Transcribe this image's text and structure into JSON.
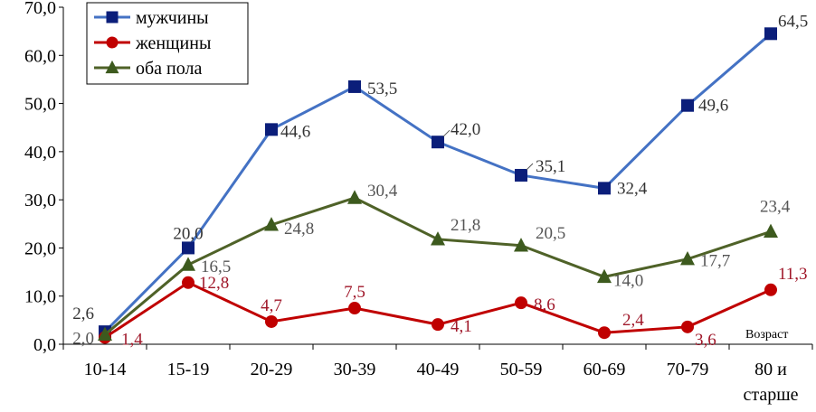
{
  "chart_data": {
    "type": "line",
    "categories": [
      "10-14",
      "15-19",
      "20-29",
      "30-39",
      "40-49",
      "50-59",
      "60-69",
      "70-79",
      "80 и старше"
    ],
    "category_lines": [
      [
        "10-14"
      ],
      [
        "15-19"
      ],
      [
        "20-29"
      ],
      [
        "30-39"
      ],
      [
        "40-49"
      ],
      [
        "50-59"
      ],
      [
        "60-69"
      ],
      [
        "70-79"
      ],
      [
        "80 и",
        "старше"
      ]
    ],
    "xlabel": "Возраст",
    "ylabel": "",
    "ylim": [
      0,
      70
    ],
    "y_ticks": [
      "0,0",
      "10,0",
      "20,0",
      "30,0",
      "40,0",
      "50,0",
      "60,0",
      "70,0"
    ],
    "legend_position": "top-left",
    "grid": false,
    "series": [
      {
        "name": "мужчины",
        "color": "#4472C4",
        "marker_color": "#0B1E7A",
        "marker": "square",
        "values": [
          2.6,
          20.0,
          44.6,
          53.5,
          42.0,
          35.1,
          32.4,
          49.6,
          64.5
        ],
        "labels": [
          "2,6",
          "20,0",
          "44,6",
          "53,5",
          "42,0",
          "35,1",
          "32,4",
          "49,6",
          "64,5"
        ],
        "label_color": "#333333"
      },
      {
        "name": "женщины",
        "color": "#C00000",
        "marker_color": "#C00000",
        "marker": "circle",
        "values": [
          1.4,
          12.8,
          4.7,
          7.5,
          4.1,
          8.6,
          2.4,
          3.6,
          11.3
        ],
        "labels": [
          "1,4",
          "12,8",
          "4,7",
          "7,5",
          "4,1",
          "8,6",
          "2,4",
          "3,6",
          "11,3"
        ],
        "label_color": "#A0182A"
      },
      {
        "name": "оба пола",
        "color": "#4F6228",
        "marker_color": "#3D5A1E",
        "marker": "triangle",
        "values": [
          2.0,
          16.5,
          24.8,
          30.4,
          21.8,
          20.5,
          14.0,
          17.7,
          23.4
        ],
        "labels": [
          "2,0",
          "16,5",
          "24,8",
          "30,4",
          "21,8",
          "20,5",
          "14,0",
          "17,7",
          "23,4"
        ],
        "label_color": "#555555"
      }
    ]
  }
}
